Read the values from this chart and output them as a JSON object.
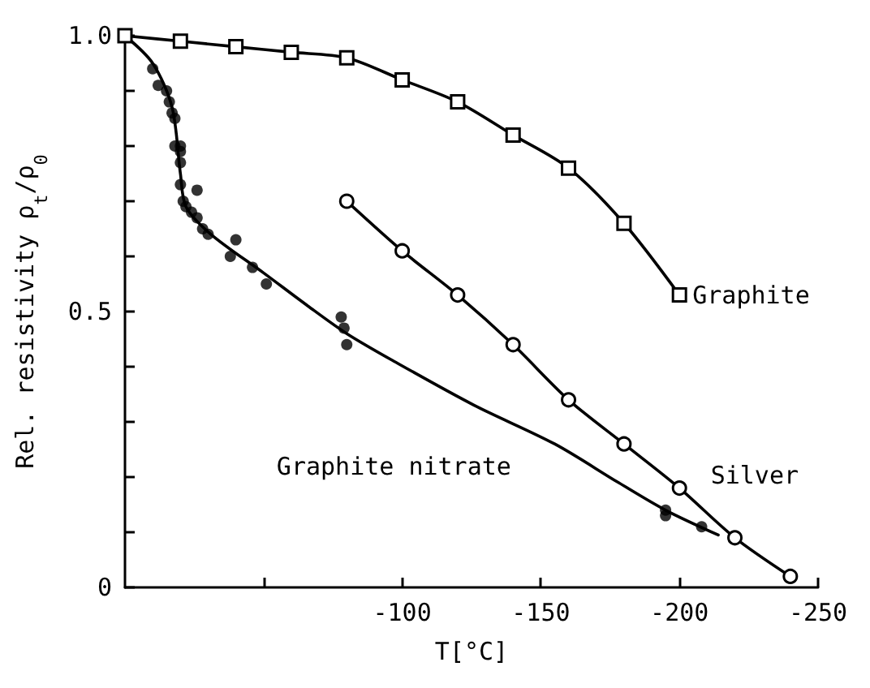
{
  "chart_data": {
    "type": "line",
    "xlabel": "T[°C]",
    "ylabel": "Rel. resistivity ρ$_{t}$/ρ$_{0}$",
    "xlim": [
      0,
      -250
    ],
    "xticks": [
      {
        "value": -50,
        "label": null
      },
      -100,
      -150,
      -200,
      -250
    ],
    "ylim": [
      0,
      1
    ],
    "yticks": [
      0,
      {
        "value": 0.1,
        "label": null
      },
      {
        "value": 0.2,
        "label": null
      },
      {
        "value": 0.3,
        "label": null
      },
      {
        "value": 0.4,
        "label": null
      },
      0.5,
      {
        "value": 0.6,
        "label": null
      },
      {
        "value": 0.7,
        "label": null
      },
      {
        "value": 0.8,
        "label": null
      },
      {
        "value": 0.9,
        "label": null
      },
      {
        "value": 1,
        "label": "1.0"
      }
    ],
    "grid": false,
    "legend": false,
    "series": [
      {
        "name": "Graphite",
        "marker": "square",
        "color": "#000000",
        "x": [
          0,
          -20,
          -40,
          -60,
          -80,
          -100,
          -120,
          -140,
          -160,
          -180,
          -200
        ],
        "values": [
          1.0,
          0.99,
          0.98,
          0.97,
          0.96,
          0.92,
          0.88,
          0.82,
          0.76,
          0.66,
          0.53
        ]
      },
      {
        "name": "Silver",
        "marker": "circle",
        "color": "#000000",
        "x": [
          -80,
          -100,
          -120,
          -140,
          -160,
          -180,
          -200,
          -220,
          -240
        ],
        "values": [
          0.7,
          0.61,
          0.53,
          0.44,
          0.34,
          0.26,
          0.18,
          0.09,
          0.02
        ]
      },
      {
        "type": "scatter",
        "marker": "circle",
        "color": "#000000",
        "x": [
          -10,
          -12,
          -15,
          -16,
          -17,
          -18,
          -18,
          -20,
          -20,
          -20,
          -20,
          -26,
          -21,
          -22,
          -24,
          -26,
          -28,
          -30,
          -38,
          -40,
          -46,
          -51,
          -78,
          -79,
          -80,
          -195,
          -195,
          -208
        ],
        "values": [
          0.94,
          0.91,
          0.9,
          0.88,
          0.86,
          0.85,
          0.8,
          0.8,
          0.79,
          0.77,
          0.73,
          0.72,
          0.7,
          0.69,
          0.68,
          0.67,
          0.65,
          0.64,
          0.6,
          0.63,
          0.58,
          0.55,
          0.49,
          0.47,
          0.44,
          0.14,
          0.13,
          0.11
        ]
      },
      {
        "name": "Graphite nitrate",
        "type": "line",
        "marker": "none",
        "color": "#000000",
        "x": [
          0,
          -10,
          -17,
          -20,
          -22,
          -31,
          -50,
          -66,
          -80,
          -97,
          -126,
          -155,
          -178,
          -195,
          -214
        ],
        "values": [
          1.0,
          0.95,
          0.87,
          0.75,
          0.69,
          0.64,
          0.57,
          0.51,
          0.46,
          0.41,
          0.33,
          0.26,
          0.19,
          0.14,
          0.095
        ]
      }
    ]
  }
}
